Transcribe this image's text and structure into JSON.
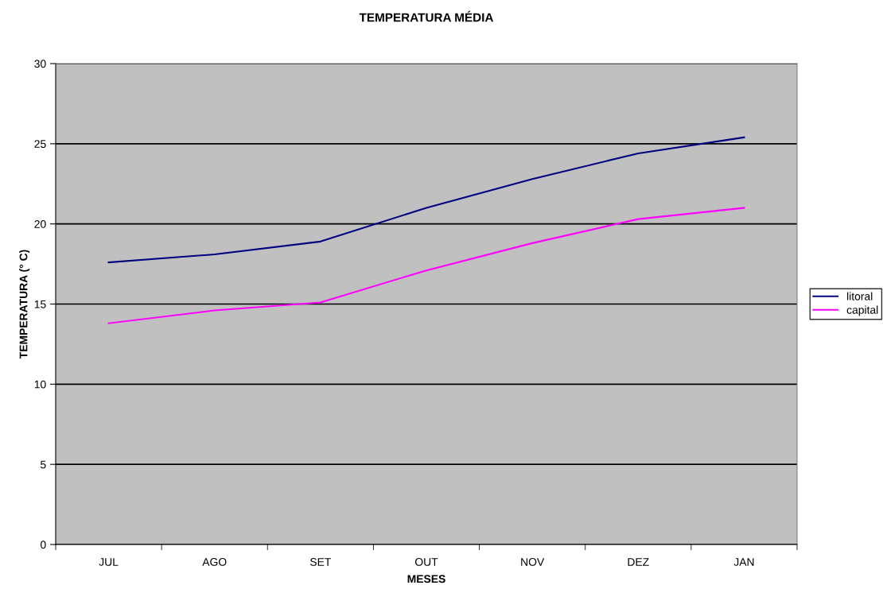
{
  "chart_data": {
    "type": "line",
    "title": "TEMPERATURA MÉDIA",
    "xlabel": "MESES",
    "ylabel": "TEMPERATURA (° C)",
    "categories": [
      "JUL",
      "AGO",
      "SET",
      "OUT",
      "NOV",
      "DEZ",
      "JAN"
    ],
    "series": [
      {
        "name": "litoral",
        "color": "#000080",
        "values": [
          17.6,
          18.1,
          18.9,
          21.0,
          22.8,
          24.4,
          25.4
        ]
      },
      {
        "name": "capital",
        "color": "#ff00ff",
        "values": [
          13.8,
          14.6,
          15.1,
          17.1,
          18.8,
          20.3,
          21.0
        ]
      }
    ],
    "ylim": [
      0,
      30
    ],
    "yticks": [
      0,
      5,
      10,
      15,
      20,
      25,
      30
    ],
    "grid": "y",
    "legend": "right",
    "marker": "none",
    "line_style": "solid"
  }
}
